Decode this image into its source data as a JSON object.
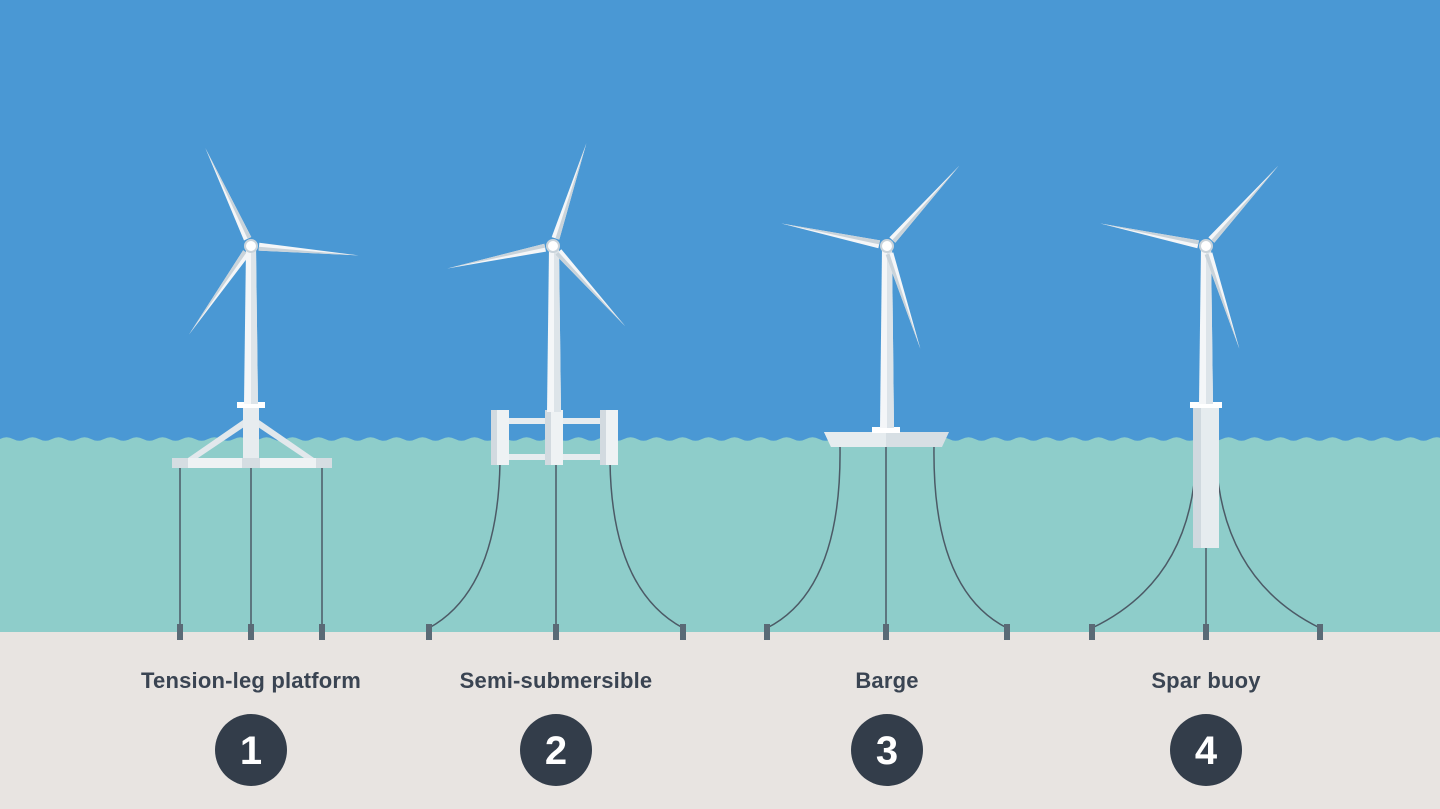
{
  "colors": {
    "sky": "#4a98d4",
    "water": "#8ecdca",
    "seabed": "#e8e4e1",
    "turbine_white": "#f4f6f8",
    "turbine_shade": "#c9d3da",
    "mooring_line": "#4c5a66",
    "anchor": "#5a6a76",
    "badge": "#333d4a",
    "label_text": "#3a4452"
  },
  "platforms": [
    {
      "number": "1",
      "label": "Tension-leg platform",
      "icon": "tension-leg-platform-turbine"
    },
    {
      "number": "2",
      "label": "Semi-submersible",
      "icon": "semi-submersible-turbine"
    },
    {
      "number": "3",
      "label": "Barge",
      "icon": "barge-turbine"
    },
    {
      "number": "4",
      "label": "Spar buoy",
      "icon": "spar-buoy-turbine"
    }
  ]
}
